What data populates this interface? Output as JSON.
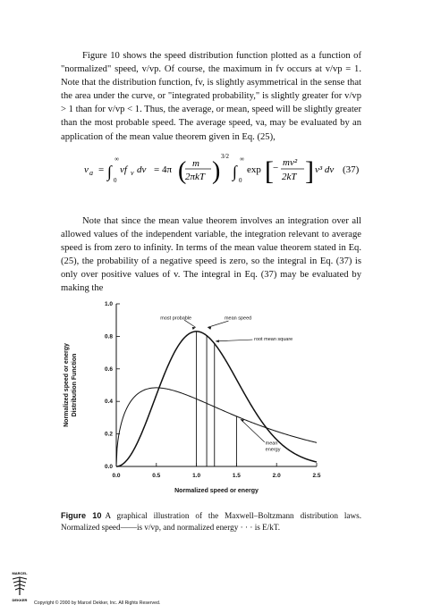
{
  "paragraph1": "Figure 10 shows the speed distribution function plotted as a function of \"normalized\" speed, v/vp. Of course, the maximum in fv occurs at v/vp = 1. Note that the distribution function, fv, is slightly asymmetrical in the sense that the area under the curve, or \"integrated probability,\" is slightly greater for v/vp > 1 than for v/vp < 1. Thus, the average, or mean, speed will be slightly greater than the most probable speed. The average speed, va, may be evaluated by an application of the mean value theorem given in Eq. (25),",
  "equation": {
    "lhs": "v",
    "lhs_sub": "a",
    "eq1": "=",
    "int1_upper": "∞",
    "int1_lower": "0",
    "integrand1": "vf",
    "integrand1_sub": "v",
    "dv1": "dv",
    "eq2": "= 4π",
    "frac_num": "m",
    "frac_den": "2πkT",
    "power": "3/2",
    "int2_upper": "∞",
    "int2_lower": "0",
    "exp": "exp",
    "exp_num": "mv²",
    "exp_den": "2kT",
    "minus": "−",
    "v3": "v³ dv",
    "number": "(37)"
  },
  "paragraph2": "Note that since the mean value theorem involves an integration over all allowed values of the independent variable, the integration relevant to average speed is from zero to infinity. In terms of the mean value theorem stated in Eq. (25), the probability of a negative speed is zero, so the integral in Eq. (37) is only over positive values of v. The integral in Eq. (37) may be evaluated by making the",
  "chart_data": {
    "type": "line",
    "xlabel": "Normalized speed or energy",
    "ylabel_line1": "Normalized speed or energy",
    "ylabel_line2": "Distribution Function",
    "xlim": [
      0,
      2.5
    ],
    "ylim": [
      0,
      1.0
    ],
    "x_ticks": [
      "0.0",
      "0.5",
      "1.0",
      "1.5",
      "2.0",
      "2.5"
    ],
    "y_ticks": [
      "0.0",
      "0.2",
      "0.4",
      "0.6",
      "0.8",
      "1.0"
    ],
    "vertical_lines": [
      1.0,
      1.128,
      1.225,
      1.5
    ],
    "annotations": [
      "most probable",
      "mean speed",
      "root mean square",
      "mean energy"
    ],
    "series": [
      {
        "style": "solid",
        "function": "4/sqrt(pi) * x^2 * exp(-x^2)"
      },
      {
        "style": "solid-thin",
        "function": "2/sqrt(pi) * sqrt(x) * exp(-x)"
      }
    ]
  },
  "caption": {
    "label": "Figure 10",
    "text": "A graphical illustration of the Maxwell–Boltzmann distribution laws. Normalized speed——is v/vp, and normalized energy · · · is E/kT."
  },
  "footer": {
    "logo_top": "MARCEL",
    "logo_bottom": "DEKKER",
    "copyright": "Copyright © 2000 by Marcel Dekker, Inc. All Rights Reserved."
  }
}
